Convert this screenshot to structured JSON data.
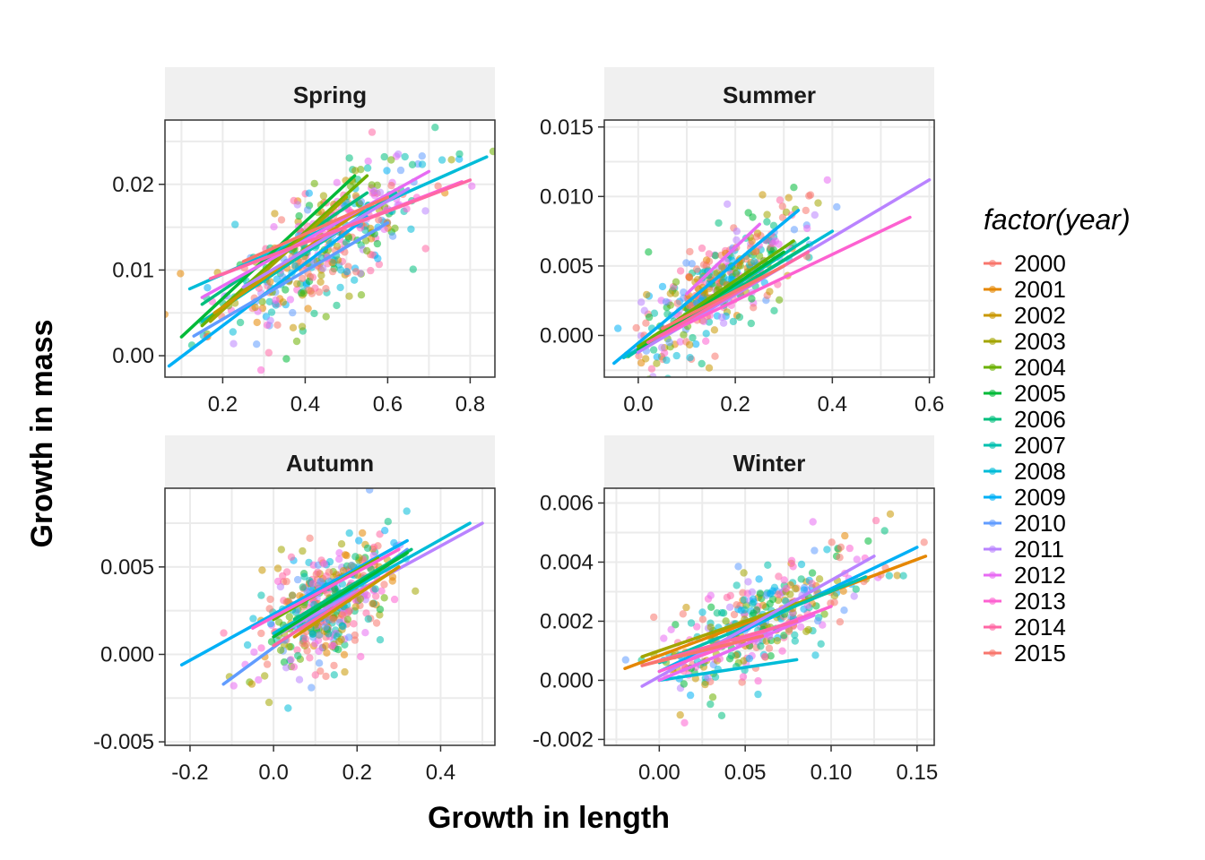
{
  "chart_data": {
    "type": "scatter",
    "xlabel": "Growth in length",
    "ylabel": "Growth in mass",
    "legend": {
      "title": "factor(year)",
      "position": "right",
      "entries": [
        {
          "label": "2000",
          "color": "#F8766D"
        },
        {
          "label": "2001",
          "color": "#E58700"
        },
        {
          "label": "2002",
          "color": "#C99800"
        },
        {
          "label": "2003",
          "color": "#A3A500"
        },
        {
          "label": "2004",
          "color": "#6BB100"
        },
        {
          "label": "2005",
          "color": "#00BA38"
        },
        {
          "label": "2006",
          "color": "#00BF7D"
        },
        {
          "label": "2007",
          "color": "#00C0AF"
        },
        {
          "label": "2008",
          "color": "#00BCD8"
        },
        {
          "label": "2009",
          "color": "#00B0F6"
        },
        {
          "label": "2010",
          "color": "#619CFF"
        },
        {
          "label": "2011",
          "color": "#B983FF"
        },
        {
          "label": "2012",
          "color": "#E76BF3"
        },
        {
          "label": "2013",
          "color": "#FD61D1"
        },
        {
          "label": "2014",
          "color": "#FF67A4"
        },
        {
          "label": "2015",
          "color": "#F8766D"
        }
      ]
    },
    "grid": true,
    "panels": [
      {
        "strip": "Spring",
        "xlim": [
          0.06,
          0.86
        ],
        "ylim": [
          -0.0025,
          0.0275
        ],
        "x_ticks": [
          0.2,
          0.4,
          0.6,
          0.8
        ],
        "x_tick_labels": [
          "0.2",
          "0.4",
          "0.6",
          "0.8"
        ],
        "y_ticks": [
          0.0,
          0.01,
          0.02
        ],
        "y_tick_labels": [
          "0.00",
          "0.01",
          "0.02"
        ],
        "cloud": {
          "x_center": 0.43,
          "x_sd": 0.13,
          "slope": 0.03,
          "intercept": -0.0005,
          "noise": 0.0035,
          "n": 420
        },
        "fits": [
          {
            "year": "2009",
            "x": [
              0.07,
              0.55
            ],
            "y": [
              -0.0012,
              0.0162
            ]
          },
          {
            "year": "2010",
            "x": [
              0.13,
              0.6
            ],
            "y": [
              0.0023,
              0.0155
            ]
          },
          {
            "year": "2008",
            "x": [
              0.12,
              0.84
            ],
            "y": [
              0.0078,
              0.0232
            ]
          },
          {
            "year": "2007",
            "x": [
              0.15,
              0.62
            ],
            "y": [
              0.004,
              0.019
            ]
          },
          {
            "year": "2006",
            "x": [
              0.15,
              0.55
            ],
            "y": [
              0.006,
              0.019
            ]
          },
          {
            "year": "2005",
            "x": [
              0.1,
              0.52
            ],
            "y": [
              0.0022,
              0.021
            ]
          },
          {
            "year": "2004",
            "x": [
              0.15,
              0.55
            ],
            "y": [
              0.0035,
              0.021
            ]
          },
          {
            "year": "2003",
            "x": [
              0.17,
              0.5
            ],
            "y": [
              0.004,
              0.0185
            ]
          },
          {
            "year": "2002",
            "x": [
              0.18,
              0.55
            ],
            "y": [
              0.005,
              0.0175
            ]
          },
          {
            "year": "2011",
            "x": [
              0.25,
              0.65
            ],
            "y": [
              0.008,
              0.0195
            ]
          },
          {
            "year": "2012",
            "x": [
              0.15,
              0.7
            ],
            "y": [
              0.0068,
              0.0215
            ]
          },
          {
            "year": "2013",
            "x": [
              0.2,
              0.78
            ],
            "y": [
              0.0095,
              0.0203
            ]
          },
          {
            "year": "2014",
            "x": [
              0.17,
              0.8
            ],
            "y": [
              0.009,
              0.0205
            ]
          },
          {
            "year": "2000",
            "x": [
              0.25,
              0.6
            ],
            "y": [
              0.011,
              0.0185
            ]
          }
        ]
      },
      {
        "strip": "Summer",
        "xlim": [
          -0.07,
          0.61
        ],
        "ylim": [
          -0.003,
          0.0155
        ],
        "x_ticks": [
          0.0,
          0.2,
          0.4,
          0.6
        ],
        "x_tick_labels": [
          "0.0",
          "0.2",
          "0.4",
          "0.6"
        ],
        "y_ticks": [
          0.0,
          0.005,
          0.01,
          0.015
        ],
        "y_tick_labels": [
          "0.000",
          "0.005",
          "0.010",
          "0.015"
        ],
        "cloud": {
          "x_center": 0.16,
          "x_sd": 0.09,
          "slope": 0.025,
          "intercept": -0.0005,
          "noise": 0.0017,
          "n": 380
        },
        "fits": [
          {
            "year": "2009",
            "x": [
              -0.05,
              0.33
            ],
            "y": [
              -0.002,
              0.009
            ]
          },
          {
            "year": "2008",
            "x": [
              -0.03,
              0.4
            ],
            "y": [
              -0.0016,
              0.0075
            ]
          },
          {
            "year": "2007",
            "x": [
              -0.02,
              0.35
            ],
            "y": [
              -0.0015,
              0.007
            ]
          },
          {
            "year": "2006",
            "x": [
              0.0,
              0.35
            ],
            "y": [
              -0.001,
              0.0065
            ]
          },
          {
            "year": "2005",
            "x": [
              0.0,
              0.3
            ],
            "y": [
              -0.001,
              0.006
            ]
          },
          {
            "year": "2004",
            "x": [
              0.0,
              0.32
            ],
            "y": [
              -0.0008,
              0.0068
            ]
          },
          {
            "year": "2011",
            "x": [
              0.0,
              0.6
            ],
            "y": [
              -0.0012,
              0.0112
            ]
          },
          {
            "year": "2012",
            "x": [
              0.1,
              0.25
            ],
            "y": [
              0.003,
              0.008
            ]
          },
          {
            "year": "2013",
            "x": [
              0.05,
              0.56
            ],
            "y": [
              0.0,
              0.0085
            ]
          },
          {
            "year": "2014",
            "x": [
              0.02,
              0.35
            ],
            "y": [
              -0.0005,
              0.006
            ]
          },
          {
            "year": "2000",
            "x": [
              0.05,
              0.3
            ],
            "y": [
              0.0005,
              0.005
            ]
          }
        ]
      },
      {
        "strip": "Autumn",
        "xlim": [
          -0.26,
          0.53
        ],
        "ylim": [
          -0.0052,
          0.0095
        ],
        "x_ticks": [
          -0.2,
          0.0,
          0.2,
          0.4
        ],
        "x_tick_labels": [
          "-0.2",
          "0.0",
          "0.2",
          "0.4"
        ],
        "y_ticks": [
          -0.005,
          0.0,
          0.005
        ],
        "y_tick_labels": [
          "-0.005",
          "0.000",
          "0.005"
        ],
        "cloud": {
          "x_center": 0.13,
          "x_sd": 0.075,
          "slope": 0.012,
          "intercept": 0.0012,
          "noise": 0.0016,
          "n": 440
        },
        "fits": [
          {
            "year": "2009",
            "x": [
              -0.22,
              0.32
            ],
            "y": [
              -0.0006,
              0.0065
            ]
          },
          {
            "year": "2010",
            "x": [
              -0.12,
              0.32
            ],
            "y": [
              -0.0017,
              0.006
            ]
          },
          {
            "year": "2011",
            "x": [
              0.0,
              0.5
            ],
            "y": [
              0.001,
              0.0075
            ]
          },
          {
            "year": "2008",
            "x": [
              0.0,
              0.47
            ],
            "y": [
              0.0012,
              0.0075
            ]
          },
          {
            "year": "2006",
            "x": [
              0.05,
              0.33
            ],
            "y": [
              0.002,
              0.006
            ]
          },
          {
            "year": "2005",
            "x": [
              0.0,
              0.32
            ],
            "y": [
              0.001,
              0.0058
            ]
          },
          {
            "year": "2004",
            "x": [
              0.0,
              0.25
            ],
            "y": [
              0.002,
              0.0055
            ]
          },
          {
            "year": "2013",
            "x": [
              -0.05,
              0.3
            ],
            "y": [
              0.0015,
              0.006
            ]
          },
          {
            "year": "2014",
            "x": [
              0.0,
              0.3
            ],
            "y": [
              0.0005,
              0.005
            ]
          },
          {
            "year": "2002",
            "x": [
              0.05,
              0.3
            ],
            "y": [
              0.001,
              0.005
            ]
          }
        ]
      },
      {
        "strip": "Winter",
        "xlim": [
          -0.032,
          0.16
        ],
        "ylim": [
          -0.0022,
          0.0065
        ],
        "x_ticks": [
          0.0,
          0.05,
          0.1,
          0.15
        ],
        "x_tick_labels": [
          "0.00",
          "0.05",
          "0.10",
          "0.15"
        ],
        "y_ticks": [
          -0.002,
          0.0,
          0.002,
          0.004,
          0.006
        ],
        "y_tick_labels": [
          "-0.002",
          "0.000",
          "0.002",
          "0.004",
          "0.006"
        ],
        "cloud": {
          "x_center": 0.06,
          "x_sd": 0.03,
          "slope": 0.028,
          "intercept": 0.0003,
          "noise": 0.0009,
          "n": 360
        },
        "fits": [
          {
            "year": "2001",
            "x": [
              -0.02,
              0.155
            ],
            "y": [
              0.0004,
              0.0042
            ]
          },
          {
            "year": "2009",
            "x": [
              0.0,
              0.15
            ],
            "y": [
              0.0003,
              0.0045
            ]
          },
          {
            "year": "2008",
            "x": [
              0.0,
              0.08
            ],
            "y": [
              0.0,
              0.0007
            ]
          },
          {
            "year": "2003",
            "x": [
              -0.01,
              0.1
            ],
            "y": [
              0.0008,
              0.003
            ]
          },
          {
            "year": "2007",
            "x": [
              0.0,
              0.12
            ],
            "y": [
              0.0006,
              0.0035
            ]
          },
          {
            "year": "2011",
            "x": [
              -0.01,
              0.125
            ],
            "y": [
              -0.0002,
              0.0042
            ]
          },
          {
            "year": "2012",
            "x": [
              0.0,
              0.09
            ],
            "y": [
              0.0,
              0.0022
            ]
          },
          {
            "year": "2013",
            "x": [
              0.0,
              0.1
            ],
            "y": [
              0.0003,
              0.0025
            ]
          },
          {
            "year": "2014",
            "x": [
              -0.01,
              0.08
            ],
            "y": [
              0.0005,
              0.002
            ]
          },
          {
            "year": "2000",
            "x": [
              -0.01,
              0.06
            ],
            "y": [
              0.0005,
              0.0015
            ]
          }
        ]
      }
    ]
  }
}
